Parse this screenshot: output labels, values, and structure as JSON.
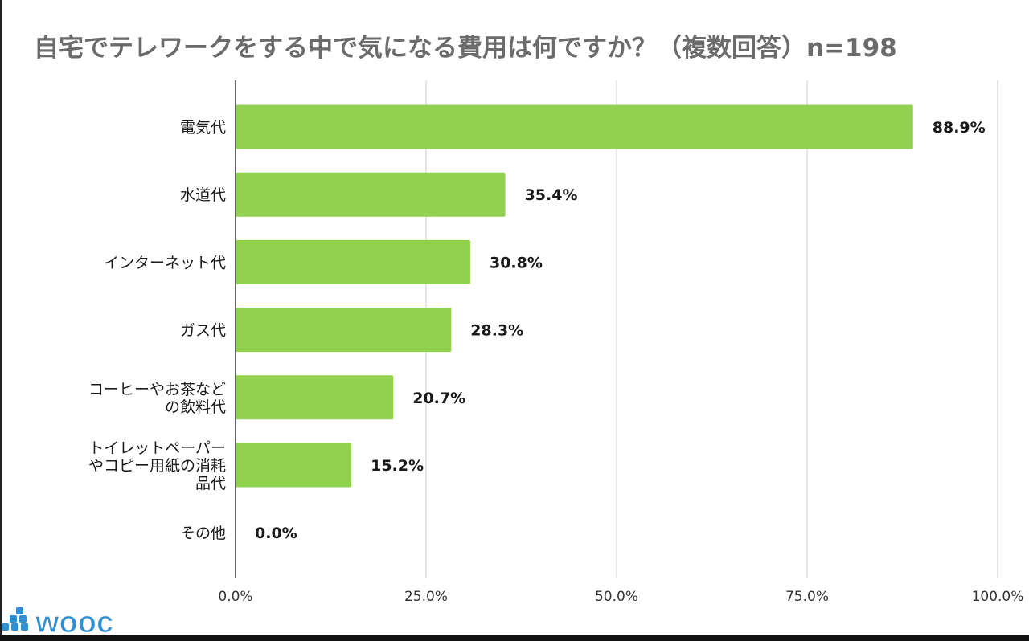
{
  "chart_data": {
    "type": "bar",
    "orientation": "horizontal",
    "title": "自宅でテレワークをする中で気になる費用は何ですか？（複数回答）n=198",
    "xlabel": "",
    "ylabel": "",
    "xlim": [
      0,
      100
    ],
    "grid": true,
    "legend": "none",
    "ticks": [
      "0.0%",
      "25.0%",
      "50.0%",
      "75.0%",
      "100.0%"
    ],
    "tick_values": [
      0,
      25,
      50,
      75,
      100
    ],
    "categories": [
      [
        "電気代"
      ],
      [
        "水道代"
      ],
      [
        "インターネット代"
      ],
      [
        "ガス代"
      ],
      [
        "コーヒーやお茶など",
        "の飲料代"
      ],
      [
        "トイレットペーパー",
        "やコピー用紙の消耗",
        "品代"
      ],
      [
        "その他"
      ]
    ],
    "values": [
      88.9,
      35.4,
      30.8,
      28.3,
      20.7,
      15.2,
      0.0
    ],
    "value_labels": [
      "88.9%",
      "35.4%",
      "30.8%",
      "28.3%",
      "20.7%",
      "15.2%",
      "0.0%"
    ],
    "bar_color": "#92d050",
    "grid_color": "#cccccc",
    "axis_color": "#333333"
  },
  "logo": {
    "text": "wooc",
    "color": "#2f8fd0"
  }
}
